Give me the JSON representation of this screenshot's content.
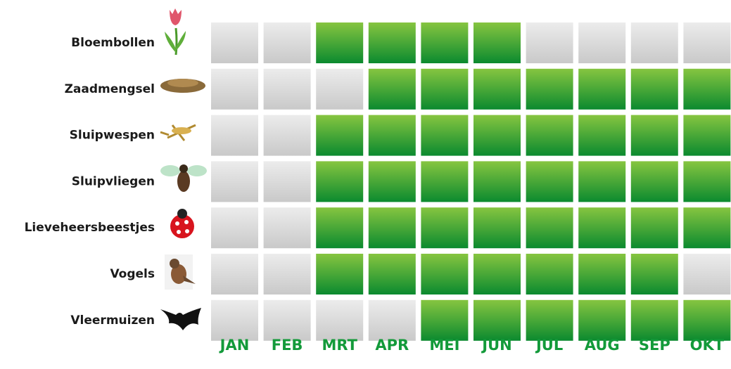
{
  "months": [
    "JAN",
    "FEB",
    "MRT",
    "APR",
    "MEI",
    "JUN",
    "JUL",
    "AUG",
    "SEP",
    "OKT"
  ],
  "rows": [
    {
      "label": "Bloembollen",
      "active": [
        0,
        0,
        1,
        1,
        1,
        1,
        0,
        0,
        0,
        0
      ]
    },
    {
      "label": "Zaadmengsel",
      "active": [
        0,
        0,
        0,
        1,
        1,
        1,
        1,
        1,
        1,
        1
      ]
    },
    {
      "label": "Sluipwespen",
      "active": [
        0,
        0,
        1,
        1,
        1,
        1,
        1,
        1,
        1,
        1
      ]
    },
    {
      "label": "Sluipvliegen",
      "active": [
        0,
        0,
        1,
        1,
        1,
        1,
        1,
        1,
        1,
        1
      ]
    },
    {
      "label": "Lieveheersbeestjes",
      "active": [
        0,
        0,
        1,
        1,
        1,
        1,
        1,
        1,
        1,
        1
      ]
    },
    {
      "label": "Vogels",
      "active": [
        0,
        0,
        1,
        1,
        1,
        1,
        1,
        1,
        1,
        0
      ]
    },
    {
      "label": "Vleermuizen",
      "active": [
        0,
        0,
        0,
        0,
        1,
        1,
        1,
        1,
        1,
        1
      ]
    }
  ]
}
